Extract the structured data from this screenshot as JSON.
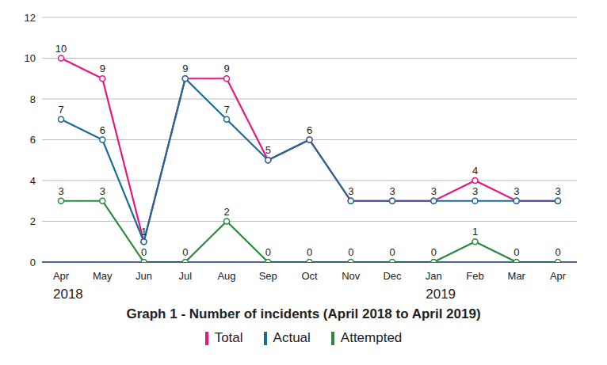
{
  "chart_data": {
    "type": "line",
    "title": "Graph 1 - Number of incidents (April 2018 to April 2019)",
    "categories": [
      "Apr",
      "May",
      "Jun",
      "Jul",
      "Aug",
      "Sep",
      "Oct",
      "Nov",
      "Dec",
      "Jan",
      "Feb",
      "Mar",
      "Apr"
    ],
    "year_labels": [
      "2018",
      null,
      null,
      null,
      null,
      null,
      null,
      null,
      null,
      "2019",
      null,
      null,
      null
    ],
    "series": [
      {
        "name": "Total",
        "color": "#e3177c",
        "marker": "circle",
        "values": [
          10,
          9,
          1,
          9,
          9,
          5,
          6,
          3,
          3,
          3,
          4,
          3,
          3
        ]
      },
      {
        "name": "Actual",
        "color": "#1c6a98",
        "marker": "circle",
        "values": [
          7,
          6,
          1,
          9,
          7,
          5,
          6,
          3,
          3,
          3,
          3,
          3,
          3
        ],
        "value_labels": [
          "7",
          "6",
          null,
          null,
          "7",
          null,
          null,
          null,
          null,
          null,
          "3",
          null,
          null
        ]
      },
      {
        "name": "Attempted",
        "color": "#2a8a3c",
        "marker": "circle",
        "values": [
          3,
          3,
          0,
          0,
          2,
          0,
          0,
          0,
          0,
          0,
          1,
          0,
          0
        ]
      }
    ],
    "ylim": [
      0,
      12
    ],
    "yticks": [
      0,
      2,
      4,
      6,
      8,
      10,
      12
    ],
    "grid": true,
    "data_labels": true,
    "legend": "bottom"
  }
}
